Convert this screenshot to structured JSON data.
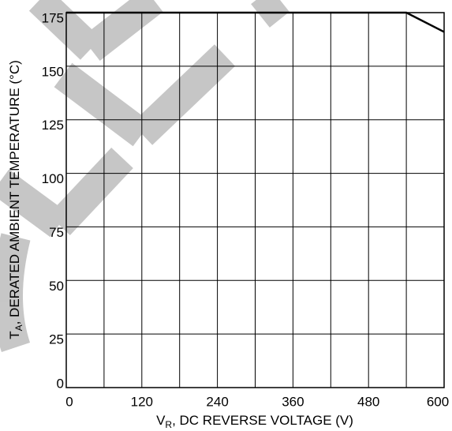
{
  "chart_data": {
    "type": "line",
    "xlabel": [
      "V",
      "R",
      ", DC REVERSE VOLTAGE (V)"
    ],
    "ylabel": [
      "T",
      "A",
      ", DERATED AMBIENT TEMPERATURE (°C)"
    ],
    "x": [
      0,
      540,
      600
    ],
    "series": [
      {
        "color": "#000000",
        "values": [
          175,
          175,
          166
        ]
      }
    ],
    "xlim": [
      0,
      600
    ],
    "xticks": [
      0,
      120,
      240,
      360,
      480,
      600
    ],
    "xminor": [
      60,
      180,
      300,
      420,
      540
    ],
    "ylim": [
      0,
      175
    ],
    "yticks": [
      0,
      25,
      50,
      75,
      100,
      125,
      150,
      175
    ],
    "grid": true
  }
}
